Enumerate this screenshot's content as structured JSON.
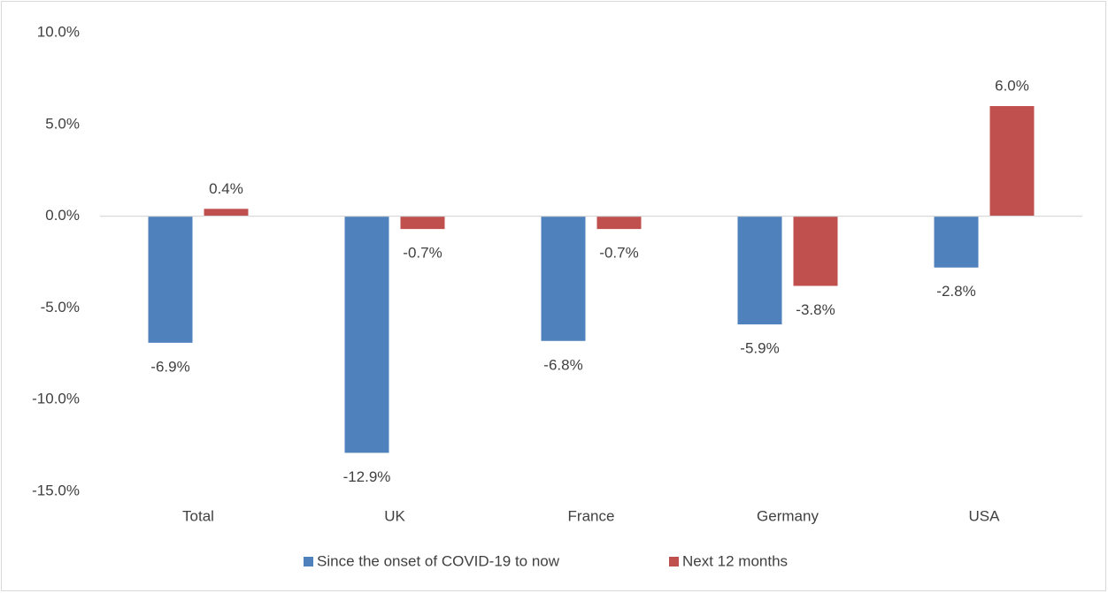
{
  "chart_data": {
    "type": "bar",
    "categories": [
      "Total",
      "UK",
      "France",
      "Germany",
      "USA"
    ],
    "series": [
      {
        "name": "Since the onset of COVID-19 to now",
        "color": "#4f81bd",
        "values": [
          -6.9,
          -12.9,
          -6.8,
          -5.9,
          -2.8
        ],
        "value_labels": [
          "-6.9%",
          "-12.9%",
          "-6.8%",
          "-5.9%",
          "-2.8%"
        ]
      },
      {
        "name": "Next 12 months",
        "color": "#c0504d",
        "values": [
          0.4,
          -0.7,
          -0.7,
          -3.8,
          6.0
        ],
        "value_labels": [
          "0.4%",
          "-0.7%",
          "-0.7%",
          "-3.8%",
          "6.0%"
        ]
      }
    ],
    "ylim": [
      -15,
      10
    ],
    "yticks": [
      {
        "value": -15,
        "label": "-15.0%"
      },
      {
        "value": -10,
        "label": "-10.0%"
      },
      {
        "value": -5,
        "label": "-5.0%"
      },
      {
        "value": 0,
        "label": "0.0%"
      },
      {
        "value": 5,
        "label": "5.0%"
      },
      {
        "value": 10,
        "label": "10.0%"
      }
    ],
    "legend": "bottom"
  }
}
